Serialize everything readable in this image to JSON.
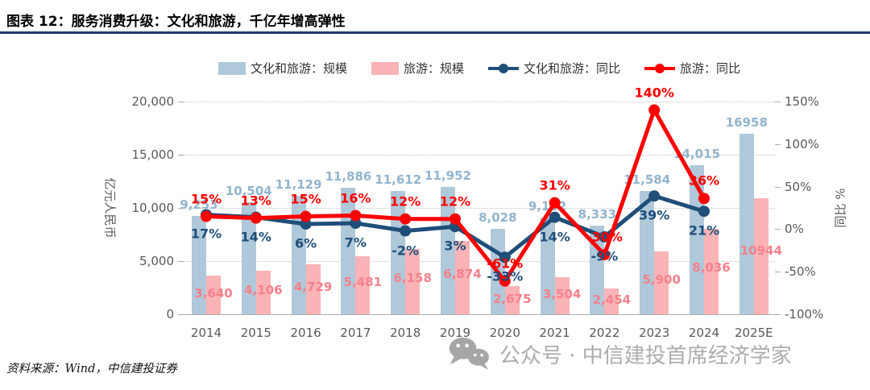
{
  "header": {
    "title": "图表 12：服务消费升级：文化和旅游，千亿年增高弹性"
  },
  "source": {
    "text": "资料来源：Wind，中信建投证券"
  },
  "watermark": {
    "icon": "wechat-icon",
    "text": "公众号 · 中信建投首席经济学家"
  },
  "colors": {
    "title_rule": "#1F3A68",
    "culture_bar": "#AFC8DA",
    "tourism_bar": "#FAB3B6",
    "culture_bar_label": "#92B4CF",
    "tourism_bar_label": "#F4818C",
    "culture_line": "#1F4E79",
    "tourism_line": "#FF0000",
    "axis_text": "#595959",
    "watermark_gray": "#ACACAC"
  },
  "chart_data": {
    "type": "bar+line combo",
    "categories": [
      "2014",
      "2015",
      "2016",
      "2017",
      "2018",
      "2019",
      "2020",
      "2021",
      "2022",
      "2023",
      "2024",
      "2025E"
    ],
    "series": [
      {
        "name": "文化和旅游：规模",
        "type": "bar",
        "axis": "left",
        "color": "#AFC8DA",
        "label_color": "#92B4CF",
        "values": [
          9253,
          10504,
          11129,
          11886,
          11612,
          11952,
          8028,
          9102,
          8333,
          11584,
          14015,
          16958
        ],
        "labels": [
          "9,253",
          "10,504",
          "11,129",
          "11,886",
          "11,612",
          "11,952",
          "8,028",
          "9,102",
          "8,333",
          "11,584",
          "14,015",
          "16958"
        ]
      },
      {
        "name": "旅游：规模",
        "type": "bar",
        "axis": "left",
        "color": "#FAB3B6",
        "label_color": "#F4818C",
        "values": [
          3640,
          4106,
          4729,
          5481,
          6158,
          6874,
          2675,
          3504,
          2454,
          5900,
          8036,
          10944
        ],
        "labels": [
          "3,640",
          "4,106",
          "4,729",
          "5,481",
          "6,158",
          "6,874",
          "2,675",
          "3,504",
          "2,454",
          "5,900",
          "8,036",
          "10944"
        ]
      },
      {
        "name": "文化和旅游：同比",
        "type": "line",
        "axis": "right",
        "color": "#1F4E79",
        "label_side": "below",
        "values": [
          17,
          14,
          6,
          7,
          -2,
          3,
          -33,
          14,
          -9,
          39,
          21
        ],
        "labels": [
          "17%",
          "14%",
          "6%",
          "7%",
          "-2%",
          "3%",
          "-33%",
          "14%",
          "-9%",
          "39%",
          "21%"
        ]
      },
      {
        "name": "旅游：同比",
        "type": "line",
        "axis": "right",
        "color": "#FF0000",
        "label_side": "above",
        "values": [
          15,
          13,
          15,
          16,
          12,
          12,
          -61,
          31,
          -30,
          140,
          36
        ],
        "labels": [
          "15%",
          "13%",
          "15%",
          "16%",
          "12%",
          "12%",
          "-61%",
          "31%",
          "-30%",
          "140%",
          "36%"
        ]
      }
    ],
    "left_axis": {
      "title": "亿元人民币",
      "min": 0,
      "max": 20000,
      "ticks": [
        {
          "label": "20,000",
          "v": 20000
        },
        {
          "label": "15,000",
          "v": 15000
        },
        {
          "label": "10,000",
          "v": 10000
        },
        {
          "label": "5,000",
          "v": 5000
        },
        {
          "label": "0",
          "v": 0
        }
      ],
      "grid_values": [
        5000,
        10000,
        15000,
        20000
      ]
    },
    "right_axis": {
      "title": "同比 %",
      "min": -100,
      "max": 150,
      "ticks": [
        {
          "label": "150%",
          "v": 150
        },
        {
          "label": "100%",
          "v": 100
        },
        {
          "label": "50%",
          "v": 50
        },
        {
          "label": "0%",
          "v": 0
        },
        {
          "label": "-50%",
          "v": -50
        },
        {
          "label": "-100%",
          "v": -100
        }
      ]
    },
    "legend_position": "top",
    "grid": "dotted horizontal"
  }
}
